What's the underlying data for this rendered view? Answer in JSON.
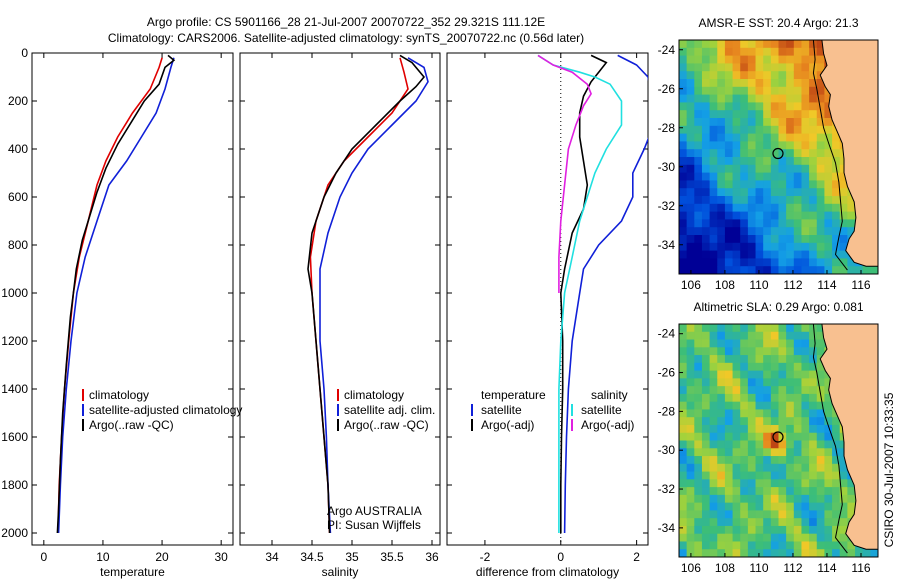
{
  "header": {
    "line1": "Argo profile: CS 5901166_28 21-Jul-2007 20070722_352 29.321S 111.12E",
    "line2": "Climatology: CARS2006. Satellite-adjusted climatology: synTS_20070722.nc (0.56d later)"
  },
  "colors": {
    "red": "#e00000",
    "blue": "#1020d8",
    "black": "#000000",
    "cyan": "#20e0e0",
    "magenta": "#e020e0",
    "land": "#f8c090",
    "coast": "#000000"
  },
  "depth_ticks": [
    0,
    200,
    400,
    600,
    800,
    1000,
    1200,
    1400,
    1600,
    1800,
    2000
  ],
  "chart_data": [
    {
      "type": "line",
      "xlabel": "temperature",
      "ylabel": "",
      "xlim": [
        -2,
        32
      ],
      "ylim": [
        2050,
        0
      ],
      "x_ticks": [
        0,
        10,
        20,
        30
      ],
      "legend": [
        "climatology",
        "satellite-adjusted climatology",
        "Argo(..raw -QC)"
      ],
      "series": [
        {
          "name": "climatology",
          "color": "red",
          "points": [
            [
              20.0,
              20
            ],
            [
              19.5,
              60
            ],
            [
              18,
              150
            ],
            [
              15,
              250
            ],
            [
              12.5,
              350
            ],
            [
              10.5,
              450
            ],
            [
              9,
              550
            ],
            [
              7.5,
              700
            ],
            [
              6,
              850
            ],
            [
              5,
              1000
            ],
            [
              4.2,
              1200
            ],
            [
              3.5,
              1400
            ],
            [
              3,
              1600
            ],
            [
              2.6,
              1800
            ],
            [
              2.4,
              2000
            ]
          ]
        },
        {
          "name": "satellite-adjusted climatology",
          "color": "blue",
          "points": [
            [
              22.0,
              20
            ],
            [
              21.5,
              60
            ],
            [
              20.5,
              150
            ],
            [
              19,
              250
            ],
            [
              16.5,
              350
            ],
            [
              14,
              450
            ],
            [
              11,
              550
            ],
            [
              9,
              700
            ],
            [
              7,
              850
            ],
            [
              5.6,
              1000
            ],
            [
              4.6,
              1200
            ],
            [
              3.8,
              1400
            ],
            [
              3.2,
              1600
            ],
            [
              2.8,
              1800
            ],
            [
              2.5,
              2000
            ]
          ]
        },
        {
          "name": "Argo(..raw -QC)",
          "color": "black",
          "points": [
            [
              21.0,
              10
            ],
            [
              22,
              30
            ],
            [
              20.5,
              60
            ],
            [
              19.5,
              130
            ],
            [
              17,
              200
            ],
            [
              15,
              280
            ],
            [
              12.5,
              380
            ],
            [
              10.5,
              480
            ],
            [
              9,
              580
            ],
            [
              7.5,
              700
            ],
            [
              6.5,
              780
            ],
            [
              5.5,
              900
            ],
            [
              5,
              1000
            ],
            [
              4.5,
              1100
            ],
            [
              3.8,
              1300
            ],
            [
              3.2,
              1500
            ],
            [
              2.8,
              1700
            ],
            [
              2.5,
              1900
            ],
            [
              2.3,
              2000
            ]
          ]
        }
      ]
    },
    {
      "type": "line",
      "xlabel": "salinity",
      "ylabel": "",
      "xlim": [
        33.6,
        36.1
      ],
      "ylim": [
        2050,
        0
      ],
      "x_ticks": [
        34,
        34.5,
        35,
        35.5,
        36
      ],
      "legend": [
        "climatology",
        "satellite adj. clim.",
        "Argo(..raw -QC)"
      ],
      "annotation": [
        "Argo AUSTRALIA",
        "PI: Susan Wijffels"
      ],
      "series": [
        {
          "name": "climatology",
          "color": "red",
          "points": [
            [
              35.6,
              20
            ],
            [
              35.65,
              80
            ],
            [
              35.7,
              150
            ],
            [
              35.5,
              250
            ],
            [
              35.2,
              350
            ],
            [
              34.9,
              450
            ],
            [
              34.7,
              550
            ],
            [
              34.55,
              700
            ],
            [
              34.48,
              850
            ],
            [
              34.5,
              1000
            ],
            [
              34.55,
              1200
            ],
            [
              34.6,
              1400
            ],
            [
              34.65,
              1600
            ],
            [
              34.7,
              1800
            ],
            [
              34.72,
              2000
            ]
          ]
        },
        {
          "name": "satellite adj. clim.",
          "color": "blue",
          "points": [
            [
              35.7,
              20
            ],
            [
              35.9,
              60
            ],
            [
              35.95,
              120
            ],
            [
              35.8,
              200
            ],
            [
              35.5,
              300
            ],
            [
              35.2,
              400
            ],
            [
              35,
              500
            ],
            [
              34.85,
              600
            ],
            [
              34.7,
              750
            ],
            [
              34.6,
              900
            ],
            [
              34.6,
              1000
            ],
            [
              34.6,
              1200
            ],
            [
              34.65,
              1400
            ],
            [
              34.68,
              1600
            ],
            [
              34.7,
              1800
            ],
            [
              34.73,
              2000
            ]
          ]
        },
        {
          "name": "Argo(..raw -QC)",
          "color": "black",
          "points": [
            [
              35.6,
              10
            ],
            [
              35.75,
              40
            ],
            [
              35.9,
              100
            ],
            [
              35.8,
              140
            ],
            [
              35.6,
              200
            ],
            [
              35.3,
              300
            ],
            [
              35,
              400
            ],
            [
              34.8,
              500
            ],
            [
              34.65,
              600
            ],
            [
              34.5,
              750
            ],
            [
              34.45,
              900
            ],
            [
              34.5,
              1000
            ],
            [
              34.55,
              1200
            ],
            [
              34.6,
              1400
            ],
            [
              34.65,
              1600
            ],
            [
              34.7,
              1800
            ],
            [
              34.72,
              2000
            ]
          ]
        }
      ]
    },
    {
      "type": "line",
      "xlabel": "difference from climatology",
      "ylabel": "",
      "xlim": [
        -3,
        2.3
      ],
      "ylim": [
        2050,
        0
      ],
      "x_ticks": [
        -2,
        0,
        2
      ],
      "legend": [
        "temperature",
        "satellite",
        "Argo(-adj)",
        "salinity",
        "satellite",
        "Argo(-adj)"
      ],
      "series": [
        {
          "name": "temperature satellite",
          "color": "blue",
          "points": [
            [
              1.5,
              10
            ],
            [
              2.0,
              50
            ],
            [
              2.3,
              100
            ],
            [
              2.4,
              180
            ],
            [
              2.5,
              280
            ],
            [
              2.2,
              400
            ],
            [
              1.9,
              500
            ],
            [
              1.9,
              600
            ],
            [
              1.6,
              700
            ],
            [
              1.0,
              800
            ],
            [
              0.6,
              900
            ],
            [
              0.5,
              1000
            ],
            [
              0.3,
              1200
            ],
            [
              0.2,
              1400
            ],
            [
              0.15,
              1600
            ],
            [
              0.12,
              1800
            ],
            [
              0.1,
              2000
            ]
          ]
        },
        {
          "name": "temperature Argo(-adj)",
          "color": "black",
          "points": [
            [
              0.8,
              10
            ],
            [
              1.2,
              40
            ],
            [
              1.0,
              80
            ],
            [
              0.8,
              120
            ],
            [
              0.6,
              180
            ],
            [
              0.5,
              250
            ],
            [
              0.5,
              350
            ],
            [
              0.6,
              450
            ],
            [
              0.7,
              550
            ],
            [
              0.6,
              650
            ],
            [
              0.3,
              750
            ],
            [
              0.1,
              900
            ],
            [
              0.0,
              1000
            ],
            [
              0.05,
              1200
            ],
            [
              0.05,
              1400
            ],
            [
              0.02,
              1600
            ],
            [
              0.0,
              1800
            ],
            [
              0.0,
              2000
            ]
          ]
        },
        {
          "name": "salinity satellite",
          "color": "cyan",
          "points": [
            [
              -0.6,
              10
            ],
            [
              -0.2,
              50
            ],
            [
              0.5,
              80
            ],
            [
              0.9,
              100
            ],
            [
              1.3,
              130
            ],
            [
              1.6,
              200
            ],
            [
              1.6,
              300
            ],
            [
              1.2,
              400
            ],
            [
              0.9,
              500
            ],
            [
              0.7,
              600
            ],
            [
              0.5,
              700
            ],
            [
              0.3,
              850
            ],
            [
              0.1,
              1000
            ],
            [
              0.0,
              1200
            ],
            [
              -0.05,
              1400
            ],
            [
              -0.05,
              1600
            ],
            [
              -0.05,
              1800
            ],
            [
              -0.05,
              2000
            ]
          ]
        },
        {
          "name": "salinity Argo(-adj)",
          "color": "magenta",
          "points": [
            [
              -0.6,
              10
            ],
            [
              -0.2,
              50
            ],
            [
              0.3,
              80
            ],
            [
              0.7,
              130
            ],
            [
              0.8,
              170
            ],
            [
              0.6,
              220
            ],
            [
              0.4,
              300
            ],
            [
              0.2,
              400
            ],
            [
              0.1,
              550
            ],
            [
              0.0,
              700
            ],
            [
              -0.05,
              850
            ],
            [
              -0.05,
              1000
            ]
          ]
        }
      ]
    },
    {
      "type": "heatmap",
      "title": "AMSR-E SST: 20.4  Argo: 21.3",
      "x_ticks": [
        106,
        108,
        110,
        112,
        114,
        116
      ],
      "y_ticks": [
        -24,
        -26,
        -28,
        -30,
        -32,
        -34
      ],
      "xlim": [
        105.3,
        117
      ],
      "ylim": [
        -35.5,
        -23.5
      ],
      "marker": [
        111.12,
        -29.32
      ]
    },
    {
      "type": "heatmap",
      "title": "Altimetric SLA: 0.29  Argo: 0.081",
      "x_ticks": [
        106,
        108,
        110,
        112,
        114,
        116
      ],
      "y_ticks": [
        -24,
        -26,
        -28,
        -30,
        -32,
        -34
      ],
      "xlim": [
        105.3,
        117
      ],
      "ylim": [
        -35.5,
        -23.5
      ],
      "marker": [
        111.12,
        -29.32
      ]
    }
  ],
  "side_label": "CSIRO 30-Jul-2007 10:33:35"
}
